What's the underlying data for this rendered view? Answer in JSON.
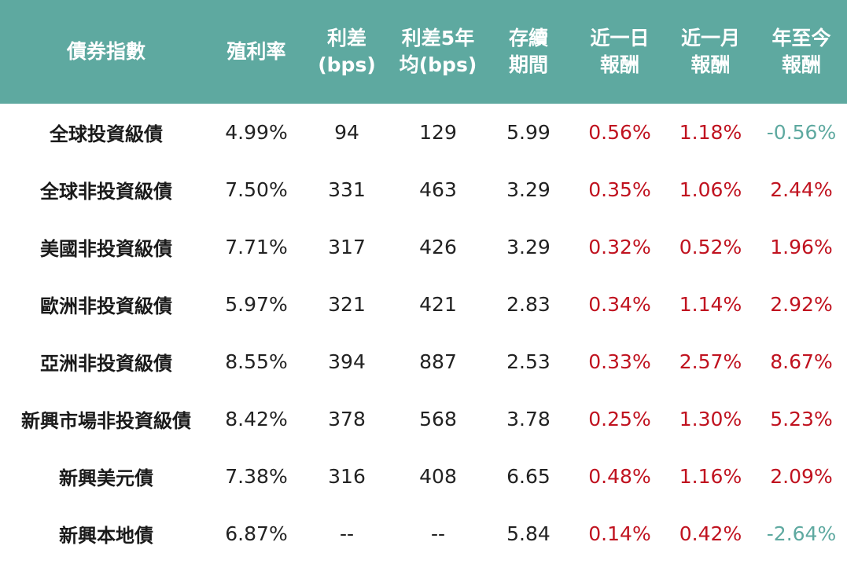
{
  "colors": {
    "header_bg": "#5ea9a0",
    "header_text": "#ffffff",
    "positive": "#c0121f",
    "negative": "#5ea9a0"
  },
  "headers": [
    [
      "債券指數"
    ],
    [
      "殖利率"
    ],
    [
      "利差",
      "(bps)"
    ],
    [
      "利差5年",
      "均(bps)"
    ],
    [
      "存續",
      "期間"
    ],
    [
      "近一日",
      "報酬"
    ],
    [
      "近一月",
      "報酬"
    ],
    [
      "年至今",
      "報酬"
    ]
  ],
  "rows": [
    {
      "name": "全球投資級債",
      "yield": "4.99%",
      "spread": "94",
      "spread_5y": "129",
      "duration": "5.99",
      "ret_1d": "0.56%",
      "ret_1m": "1.18%",
      "ret_ytd": "-0.56%"
    },
    {
      "name": "全球非投資級債",
      "yield": "7.50%",
      "spread": "331",
      "spread_5y": "463",
      "duration": "3.29",
      "ret_1d": "0.35%",
      "ret_1m": "1.06%",
      "ret_ytd": "2.44%"
    },
    {
      "name": "美國非投資級債",
      "yield": "7.71%",
      "spread": "317",
      "spread_5y": "426",
      "duration": "3.29",
      "ret_1d": "0.32%",
      "ret_1m": "0.52%",
      "ret_ytd": "1.96%"
    },
    {
      "name": "歐洲非投資級債",
      "yield": "5.97%",
      "spread": "321",
      "spread_5y": "421",
      "duration": "2.83",
      "ret_1d": "0.34%",
      "ret_1m": "1.14%",
      "ret_ytd": "2.92%"
    },
    {
      "name": "亞洲非投資級債",
      "yield": "8.55%",
      "spread": "394",
      "spread_5y": "887",
      "duration": "2.53",
      "ret_1d": "0.33%",
      "ret_1m": "2.57%",
      "ret_ytd": "8.67%"
    },
    {
      "name": "新興市場非投資級債",
      "yield": "8.42%",
      "spread": "378",
      "spread_5y": "568",
      "duration": "3.78",
      "ret_1d": "0.25%",
      "ret_1m": "1.30%",
      "ret_ytd": "5.23%"
    },
    {
      "name": "新興美元債",
      "yield": "7.38%",
      "spread": "316",
      "spread_5y": "408",
      "duration": "6.65",
      "ret_1d": "0.48%",
      "ret_1m": "1.16%",
      "ret_ytd": "2.09%"
    },
    {
      "name": "新興本地債",
      "yield": "6.87%",
      "spread": "--",
      "spread_5y": "--",
      "duration": "5.84",
      "ret_1d": "0.14%",
      "ret_1m": "0.42%",
      "ret_ytd": "-2.64%"
    }
  ]
}
